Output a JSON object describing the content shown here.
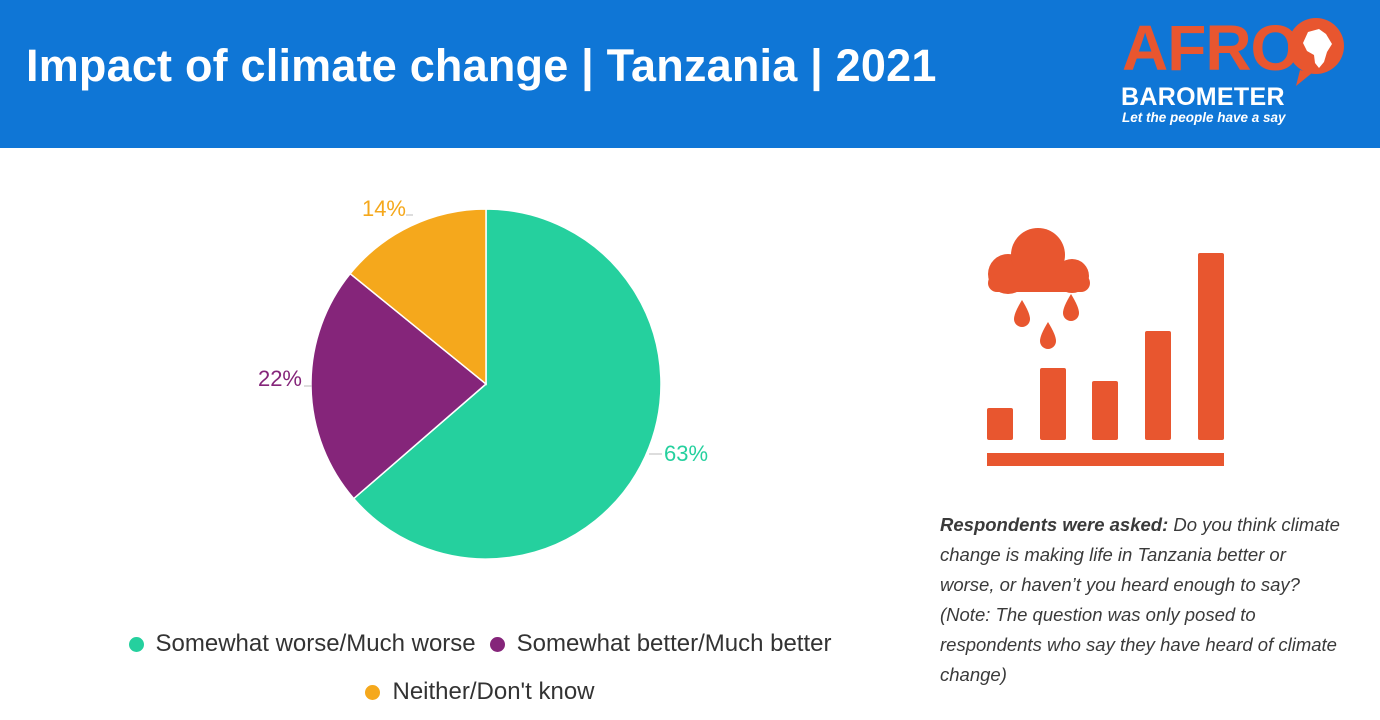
{
  "header": {
    "title": "Impact of climate change | Tanzania | 2021",
    "background_color": "#0f76d6"
  },
  "logo": {
    "wordmark": "AFRO",
    "sub_wordmark": "BAROMETER",
    "tagline": "Let the people have a say",
    "colors": {
      "primary": "#e8562f",
      "secondary": "#ffffff"
    },
    "icon": "africa-speech-bubble-icon"
  },
  "chart_data": {
    "type": "pie",
    "title": "Impact of climate change | Tanzania | 2021",
    "slices": [
      {
        "label": "Somewhat worse/Much worse",
        "value": 63,
        "display": "63%",
        "color": "#25d09e"
      },
      {
        "label": "Somewhat better/Much better",
        "value": 22,
        "display": "22%",
        "color": "#85257a"
      },
      {
        "label": "Neither/Don't know",
        "value": 14,
        "display": "14%",
        "color": "#f5a81c"
      }
    ],
    "legend_position": "bottom",
    "slice_labels": "outside"
  },
  "illustration": {
    "icon": "rain-cloud-bar-chart-icon",
    "color": "#e8562f"
  },
  "note": {
    "lead": "Respondents were asked:",
    "text": " Do you think climate change is making life in Tanzania better or worse, or haven’t you heard enough to say? (Note: The question was only posed to respondents who say they have heard of climate change)"
  }
}
